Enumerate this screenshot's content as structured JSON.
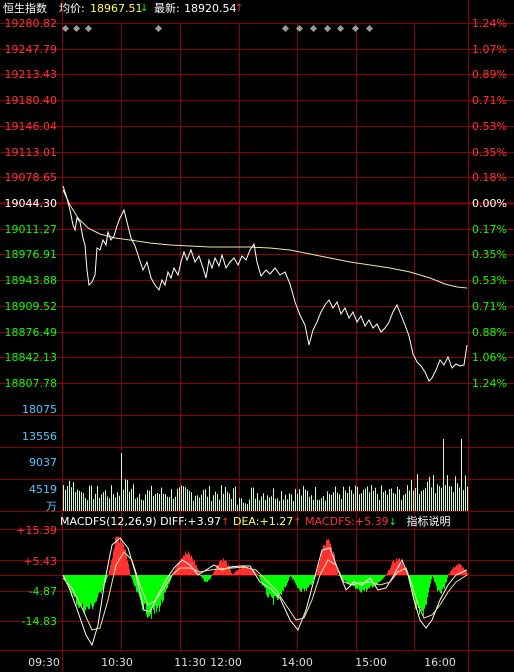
{
  "header": {
    "name": "恒生指数",
    "avg_label": "均价:",
    "avg_value": "18967.51",
    "avg_arrow": "↓",
    "latest_label": "最新:",
    "latest_value": "18920.54",
    "latest_arrow": "↑"
  },
  "price_panel": {
    "prev_close": 19044.3,
    "y_labels_up": [
      "19280.82",
      "19247.79",
      "19213.43",
      "19180.40",
      "19146.04",
      "19113.01",
      "19078.65"
    ],
    "y_label_mid": "19044.30",
    "y_labels_down": [
      "19011.27",
      "18976.91",
      "18943.88",
      "18909.52",
      "18876.49",
      "18842.13",
      "18807.78"
    ],
    "pct_labels_up": [
      "1.24%",
      "1.07%",
      "0.89%",
      "0.71%",
      "0.53%",
      "0.35%",
      "0.18%"
    ],
    "pct_label_mid": "0.00%",
    "pct_labels_down": [
      "0.17%",
      "0.35%",
      "0.53%",
      "0.71%",
      "0.88%",
      "1.06%",
      "1.24%"
    ]
  },
  "volume_panel": {
    "y_labels": [
      "18075",
      "13556",
      "9037",
      "4519"
    ],
    "unit_label": "万"
  },
  "macd_panel": {
    "title": "MACDFS(12,26,9)",
    "diff_label": "DIFF:",
    "diff_value": "+3.97",
    "diff_arrow": "↑",
    "dea_label": "DEA:",
    "dea_value": "+1.27",
    "dea_arrow": "↑",
    "macd_label": "MACDFS:",
    "macd_value": "+5.39",
    "macd_arrow": "↓",
    "help_label": "指标说明",
    "y_labels": [
      "+15.39",
      "+5.43",
      "-4.87",
      "-14.83"
    ]
  },
  "time_axis": {
    "labels": [
      "09:30",
      "10:30",
      "11:30",
      "12:00",
      "14:00",
      "15:00",
      "16:00"
    ]
  },
  "colors": {
    "up": "#ff3232",
    "down": "#00ff00",
    "grid": "#8b0000",
    "price_line": "#ffffff",
    "avg_line": "#f0e6a0",
    "volume_bar": "#c8ffd2",
    "left_blue": "#52c8ff",
    "header_yellow": "#ffff55"
  }
}
